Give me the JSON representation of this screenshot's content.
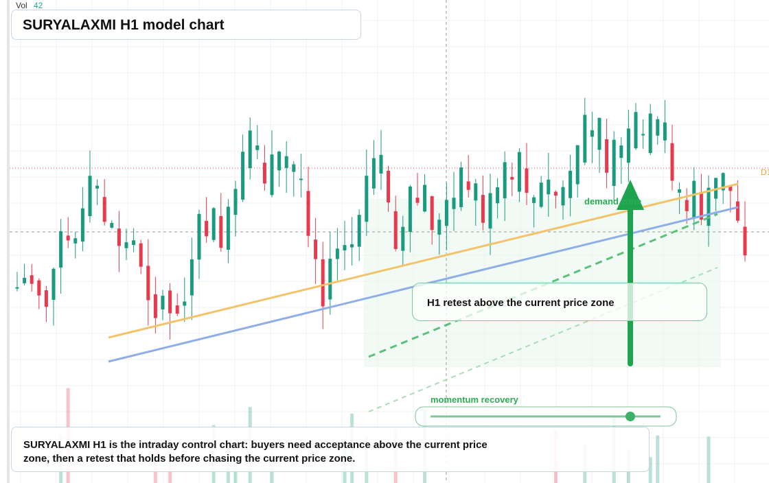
{
  "header": {
    "volume_label": "Vol",
    "volume_value": "42",
    "title": "SURYALAXMI H1 model chart"
  },
  "annotations": {
    "zone": "demand zone",
    "callout": "H1 retest above the current price zone",
    "momentum": "momentum recovery",
    "edge_label": "D1"
  },
  "caption": "SURYALAXMI H1 is the intraday control chart: buyers need acceptance above the current price zone, then a retest that holds before chasing the current price zone."
}
